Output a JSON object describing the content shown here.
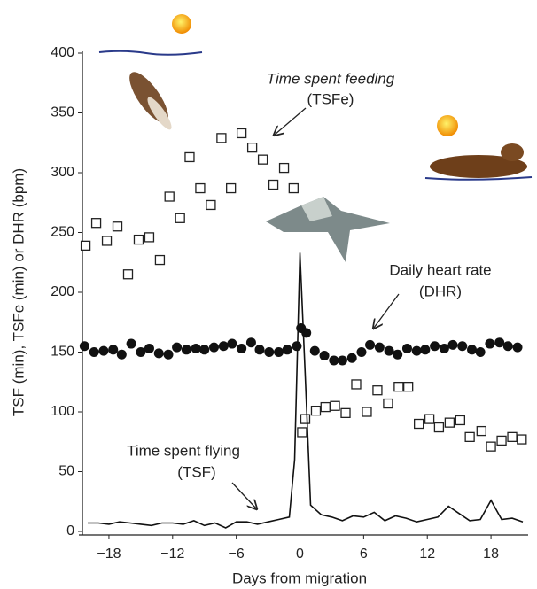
{
  "chart_data": {
    "type": "line",
    "x_label": "Days from migration",
    "y_label": "TSF (min), TSFe (min) or DHR (bpm)",
    "xlim": [
      -20.5,
      21.5
    ],
    "ylim": [
      0,
      400
    ],
    "xticks": [
      {
        "value": -18,
        "label": "−18"
      },
      {
        "value": -12,
        "label": "−12"
      },
      {
        "value": -6,
        "label": "−6"
      },
      0,
      6,
      12,
      18
    ],
    "yticks": [
      0,
      50,
      100,
      150,
      200,
      250,
      300,
      350,
      400
    ],
    "annotations": [
      "Time spent feeding",
      "(TSFe)",
      "Daily heart rate",
      "(DHR)",
      "Time spent flying",
      "(TSF)"
    ],
    "series": [
      {
        "marker": "square",
        "color": "#222222",
        "x": [
          -20.2,
          -19.2,
          -18.2,
          -17.2,
          -16.2,
          -15.2,
          -14.2,
          -13.2,
          -12.3,
          -11.3,
          -10.4,
          -9.4,
          -8.4,
          -7.4,
          -6.5,
          -5.5,
          -4.5,
          -3.5,
          -2.5,
          -1.5,
          -0.6,
          0.2,
          0.5,
          1.5,
          2.4,
          3.3,
          4.3,
          5.3,
          6.3,
          7.3,
          8.3,
          9.3,
          10.2,
          11.2,
          12.2,
          13.1,
          14.1,
          15.1,
          16.0,
          17.1,
          18.0,
          19.0,
          20.0,
          20.9
        ],
        "values": [
          239,
          258,
          243,
          255,
          215,
          244,
          246,
          227,
          280,
          262,
          313,
          287,
          273,
          329,
          287,
          333,
          321,
          311,
          290,
          304,
          287,
          83,
          94,
          101,
          104,
          105,
          99,
          123,
          100,
          118,
          107,
          121,
          121,
          90,
          94,
          87,
          91,
          93,
          79,
          84,
          71,
          76,
          79,
          77
        ]
      },
      {
        "marker": "circle",
        "color": "#111111",
        "x": [
          -20.3,
          -19.4,
          -18.5,
          -17.6,
          -16.8,
          -15.9,
          -15.0,
          -14.2,
          -13.3,
          -12.4,
          -11.6,
          -10.7,
          -9.8,
          -9.0,
          -8.1,
          -7.2,
          -6.4,
          -5.5,
          -4.6,
          -3.8,
          -2.9,
          -2.0,
          -1.2,
          -0.3,
          0.1,
          0.6,
          1.4,
          2.3,
          3.2,
          4.0,
          4.9,
          5.8,
          6.6,
          7.5,
          8.4,
          9.2,
          10.1,
          11.0,
          11.8,
          12.7,
          13.6,
          14.4,
          15.3,
          16.2,
          17.0,
          17.9,
          18.8,
          19.6,
          20.5
        ],
        "values": [
          155,
          150,
          151,
          152,
          148,
          157,
          150,
          153,
          149,
          148,
          154,
          152,
          153,
          152,
          154,
          155,
          157,
          153,
          158,
          152,
          150,
          150,
          152,
          155,
          170,
          166,
          151,
          147,
          143,
          143,
          145,
          150,
          156,
          154,
          151,
          148,
          153,
          151,
          152,
          155,
          153,
          156,
          155,
          152,
          150,
          157,
          158,
          155,
          154
        ]
      },
      {
        "marker": "line",
        "color": "#111111",
        "x": [
          -20,
          -19,
          -18,
          -17,
          -16,
          -15,
          -14,
          -13,
          -12,
          -11,
          -10,
          -9,
          -8,
          -7,
          -6,
          -5,
          -4,
          -3,
          -2,
          -1,
          -0.5,
          0,
          0.5,
          1,
          2,
          3,
          4,
          5,
          6,
          7,
          8,
          9,
          10,
          11,
          12,
          13,
          14,
          15,
          16,
          17,
          18,
          19,
          20,
          21
        ],
        "values": [
          7,
          7,
          6,
          8,
          7,
          6,
          5,
          7,
          7,
          6,
          9,
          5,
          7,
          3,
          8,
          8,
          6,
          8,
          10,
          12,
          60,
          233,
          130,
          22,
          14,
          12,
          9,
          13,
          12,
          16,
          9,
          13,
          11,
          8,
          10,
          12,
          21,
          15,
          9,
          10,
          26,
          10,
          11,
          8
        ]
      }
    ]
  }
}
